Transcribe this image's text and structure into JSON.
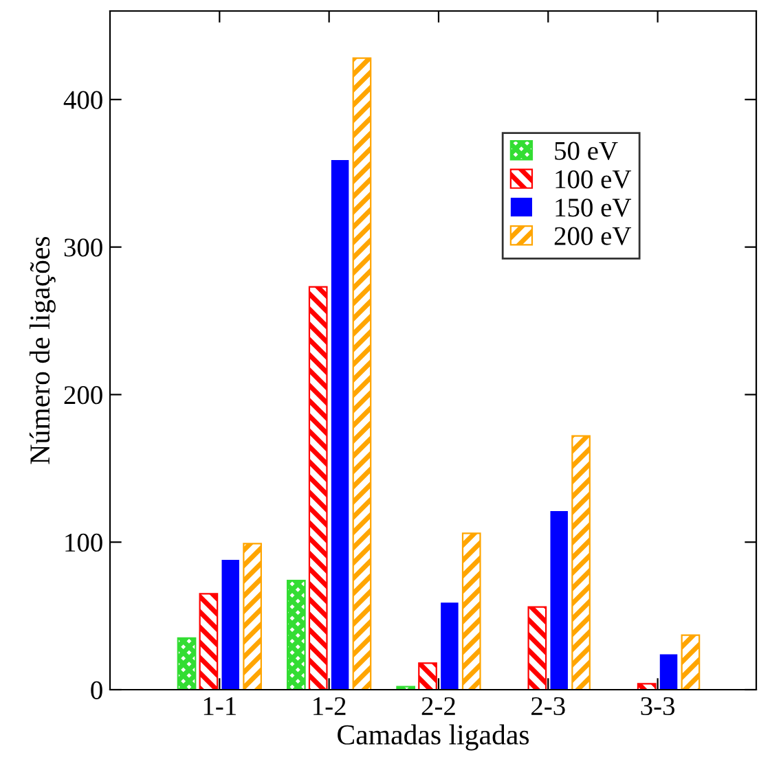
{
  "chart_data": {
    "type": "bar",
    "xlabel": "Camadas ligadas",
    "ylabel": "Número de ligações",
    "categories": [
      "1-1",
      "1-2",
      "2-2",
      "2-3",
      "3-3"
    ],
    "series": [
      {
        "name": "50 eV",
        "color": "#33dd33",
        "values": [
          35,
          74,
          2,
          0,
          0
        ]
      },
      {
        "name": "100 eV",
        "color": "#ff0000",
        "values": [
          65,
          273,
          18,
          56,
          4
        ]
      },
      {
        "name": "150 eV",
        "color": "#0000ff",
        "values": [
          88,
          359,
          59,
          121,
          24
        ]
      },
      {
        "name": "200 eV",
        "color": "#ffa500",
        "values": [
          99,
          428,
          106,
          172,
          37
        ]
      }
    ],
    "ylim": [
      0,
      460
    ],
    "yticks": [
      0,
      100,
      200,
      300,
      400
    ],
    "grid": false,
    "legend": "top right"
  }
}
